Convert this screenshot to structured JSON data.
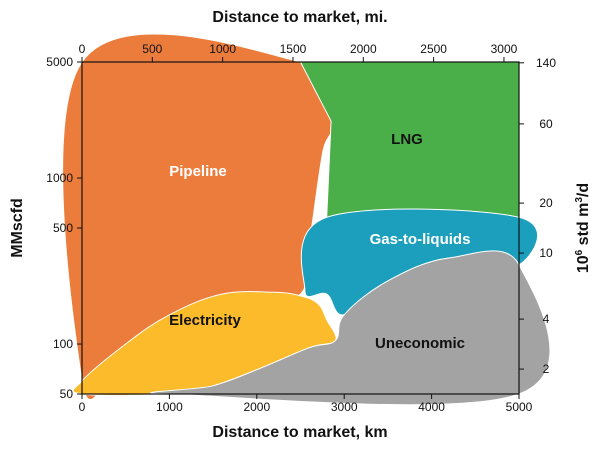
{
  "chart_data": {
    "type": "area",
    "title": "",
    "x_bottom": {
      "label": "Distance to market, km",
      "range": [
        0,
        5000
      ],
      "ticks": [
        "0",
        "1000",
        "2000",
        "3000",
        "4000",
        "5000"
      ]
    },
    "x_top": {
      "label": "Distance to market, mi.",
      "range": [
        0,
        3107
      ],
      "ticks": [
        "0",
        "500",
        "1000",
        "1500",
        "2000",
        "2500",
        "3000"
      ]
    },
    "y_left": {
      "label": "MMscfd",
      "scale": "log",
      "range": [
        50,
        5000
      ],
      "ticks": [
        "50",
        "100",
        "500",
        "1000",
        "5000"
      ]
    },
    "y_right": {
      "label_main": "10",
      "label_sup1": "6",
      "label_mid": " std m",
      "label_sup2": "3",
      "label_end": "/d",
      "scale": "log",
      "ticks": [
        "2",
        "4",
        "10",
        "20",
        "60",
        "140"
      ]
    },
    "regions": [
      {
        "name": "Pipeline",
        "color": "#ec7c3b",
        "boundary": [
          [
            0,
            5000
          ],
          [
            2500,
            5000
          ],
          [
            2850,
            2200
          ],
          [
            2750,
            1400
          ],
          [
            2600,
            400
          ],
          [
            2500,
            200
          ],
          [
            2000,
            200
          ],
          [
            1500,
            160
          ],
          [
            1000,
            120
          ],
          [
            500,
            90
          ],
          [
            0,
            60
          ]
        ]
      },
      {
        "name": "LNG",
        "color": "#4baf49",
        "boundary": [
          [
            2500,
            5000
          ],
          [
            5000,
            5000
          ],
          [
            5000,
            580
          ],
          [
            2800,
            580
          ],
          [
            2850,
            2200
          ]
        ]
      },
      {
        "name": "Gas-to-liquids",
        "color": "#1c9fbd",
        "boundary": [
          [
            2800,
            580
          ],
          [
            5000,
            580
          ],
          [
            5000,
            300
          ],
          [
            4200,
            330
          ],
          [
            3500,
            240
          ],
          [
            3000,
            150
          ],
          [
            2800,
            200
          ],
          [
            2550,
            210
          ]
        ]
      },
      {
        "name": "Electricity",
        "color": "#fbbb2b",
        "boundary": [
          [
            0,
            60
          ],
          [
            500,
            100
          ],
          [
            1000,
            150
          ],
          [
            1600,
            200
          ],
          [
            2200,
            205
          ],
          [
            2500,
            195
          ],
          [
            2700,
            175
          ],
          [
            2800,
            140
          ],
          [
            2900,
            105
          ],
          [
            2600,
            95
          ],
          [
            2000,
            70
          ],
          [
            1500,
            56
          ],
          [
            1000,
            50
          ],
          [
            0,
            50
          ]
        ]
      },
      {
        "name": "Uneconomic",
        "color": "#a3a3a3",
        "boundary": [
          [
            1000,
            50
          ],
          [
            5000,
            50
          ],
          [
            5000,
            300
          ],
          [
            4200,
            330
          ],
          [
            3500,
            240
          ],
          [
            3000,
            150
          ],
          [
            2900,
            105
          ],
          [
            2600,
            95
          ],
          [
            2000,
            70
          ],
          [
            1500,
            56
          ]
        ]
      }
    ],
    "labels": {
      "pipeline": "Pipeline",
      "lng": "LNG",
      "gtl": "Gas-to-liquids",
      "electricity": "Electricity",
      "uneconomic": "Uneconomic"
    },
    "grid": false,
    "legend": "none"
  }
}
